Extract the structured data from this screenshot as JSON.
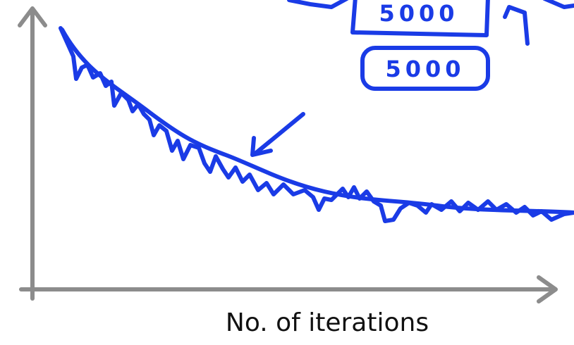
{
  "chart_data": {
    "type": "line",
    "title": "",
    "xlabel": "No. of iterations",
    "ylabel": "",
    "grid": false,
    "legend": "none",
    "annotations": [
      "5000",
      "5000"
    ],
    "series": []
  },
  "colors": {
    "axis": "#8c8c8c",
    "ink": "#1a3be6",
    "label": "#111111"
  }
}
